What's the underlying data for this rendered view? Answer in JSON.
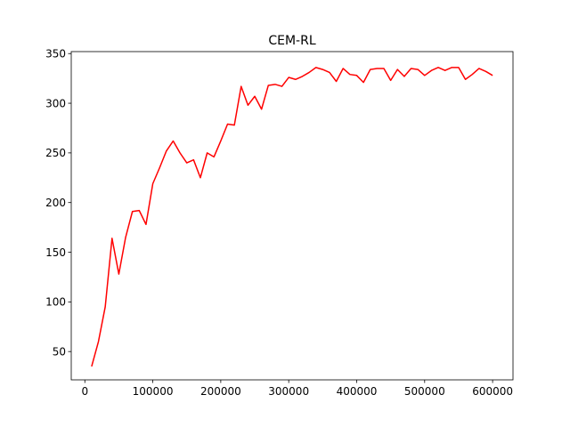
{
  "chart_data": {
    "type": "line",
    "title": "CEM-RL",
    "xlabel": "",
    "ylabel": "",
    "xlim": [
      -20000,
      630000
    ],
    "ylim": [
      21.5,
      352
    ],
    "x_ticks": [
      0,
      100000,
      200000,
      300000,
      400000,
      500000,
      600000
    ],
    "y_ticks": [
      50,
      100,
      150,
      200,
      250,
      300,
      350
    ],
    "grid": false,
    "legend": "none",
    "series": [
      {
        "color": "#ff0000",
        "x": [
          10000,
          20000,
          30000,
          40000,
          50000,
          60000,
          70000,
          80000,
          90000,
          100000,
          110000,
          120000,
          130000,
          140000,
          150000,
          160000,
          170000,
          180000,
          190000,
          200000,
          210000,
          220000,
          230000,
          240000,
          250000,
          260000,
          270000,
          280000,
          290000,
          300000,
          310000,
          320000,
          330000,
          340000,
          350000,
          360000,
          370000,
          380000,
          390000,
          400000,
          410000,
          420000,
          430000,
          440000,
          450000,
          460000,
          470000,
          480000,
          490000,
          500000,
          510000,
          520000,
          530000,
          540000,
          550000,
          560000,
          570000,
          580000,
          590000,
          600000
        ],
        "values": [
          35,
          60,
          95,
          164,
          128,
          165,
          191,
          192,
          178,
          219,
          235,
          252,
          262,
          250,
          240,
          243,
          225,
          250,
          246,
          262,
          279,
          278,
          317,
          298,
          307,
          294,
          318,
          319,
          317,
          326,
          324,
          327,
          331,
          336,
          334,
          331,
          322,
          335,
          329,
          328,
          321,
          334,
          335,
          335,
          323,
          334,
          327,
          335,
          334,
          328,
          333,
          336,
          333,
          336,
          336,
          324,
          329,
          335,
          332,
          328
        ]
      }
    ]
  }
}
